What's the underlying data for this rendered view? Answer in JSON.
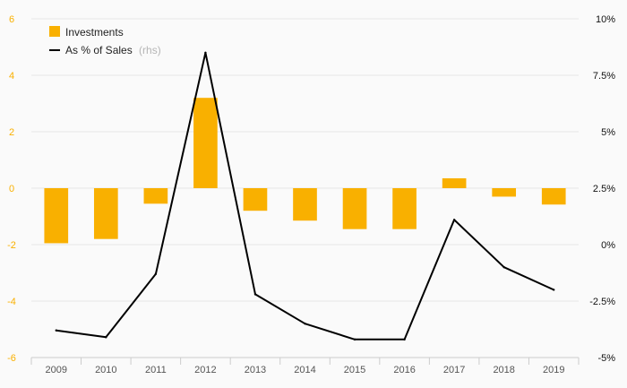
{
  "chart_data": {
    "type": "bar",
    "categories": [
      "2009",
      "2010",
      "2011",
      "2012",
      "2013",
      "2014",
      "2015",
      "2016",
      "2017",
      "2018",
      "2019"
    ],
    "series": [
      {
        "name": "Investments",
        "type": "bar",
        "axis": "left",
        "color": "#f9b000",
        "values": [
          -1.95,
          -1.8,
          -0.55,
          3.2,
          -0.8,
          -1.15,
          -1.45,
          -1.45,
          0.35,
          -0.3,
          -0.58
        ]
      },
      {
        "name": "As % of Sales",
        "type": "line",
        "axis": "right",
        "color": "#000000",
        "values": [
          -3.8,
          -4.1,
          -1.3,
          8.5,
          -2.2,
          -3.5,
          -4.2,
          -4.2,
          1.1,
          -1.0,
          -2.0
        ]
      }
    ],
    "legend": {
      "investments": "Investments",
      "sales_label": "As % of Sales",
      "sales_suffix": "(rhs)"
    },
    "y_left": {
      "ylim": [
        -6,
        6
      ],
      "ticks": [
        6,
        4,
        2,
        0,
        -2,
        -4,
        -6
      ],
      "tick_labels": [
        "6",
        "4",
        "2",
        "0",
        "-2",
        "-4",
        "-6"
      ],
      "tick_color": "#f9b000"
    },
    "y_right": {
      "ylim": [
        -5,
        10
      ],
      "ticks": [
        10,
        7.5,
        5,
        2.5,
        0,
        -2.5,
        -5
      ],
      "tick_labels": [
        "10%",
        "7.5%",
        "5%",
        "2.5%",
        "0%",
        "-2.5%",
        "-5%"
      ]
    },
    "grid": true,
    "legend_position": "top-left"
  }
}
